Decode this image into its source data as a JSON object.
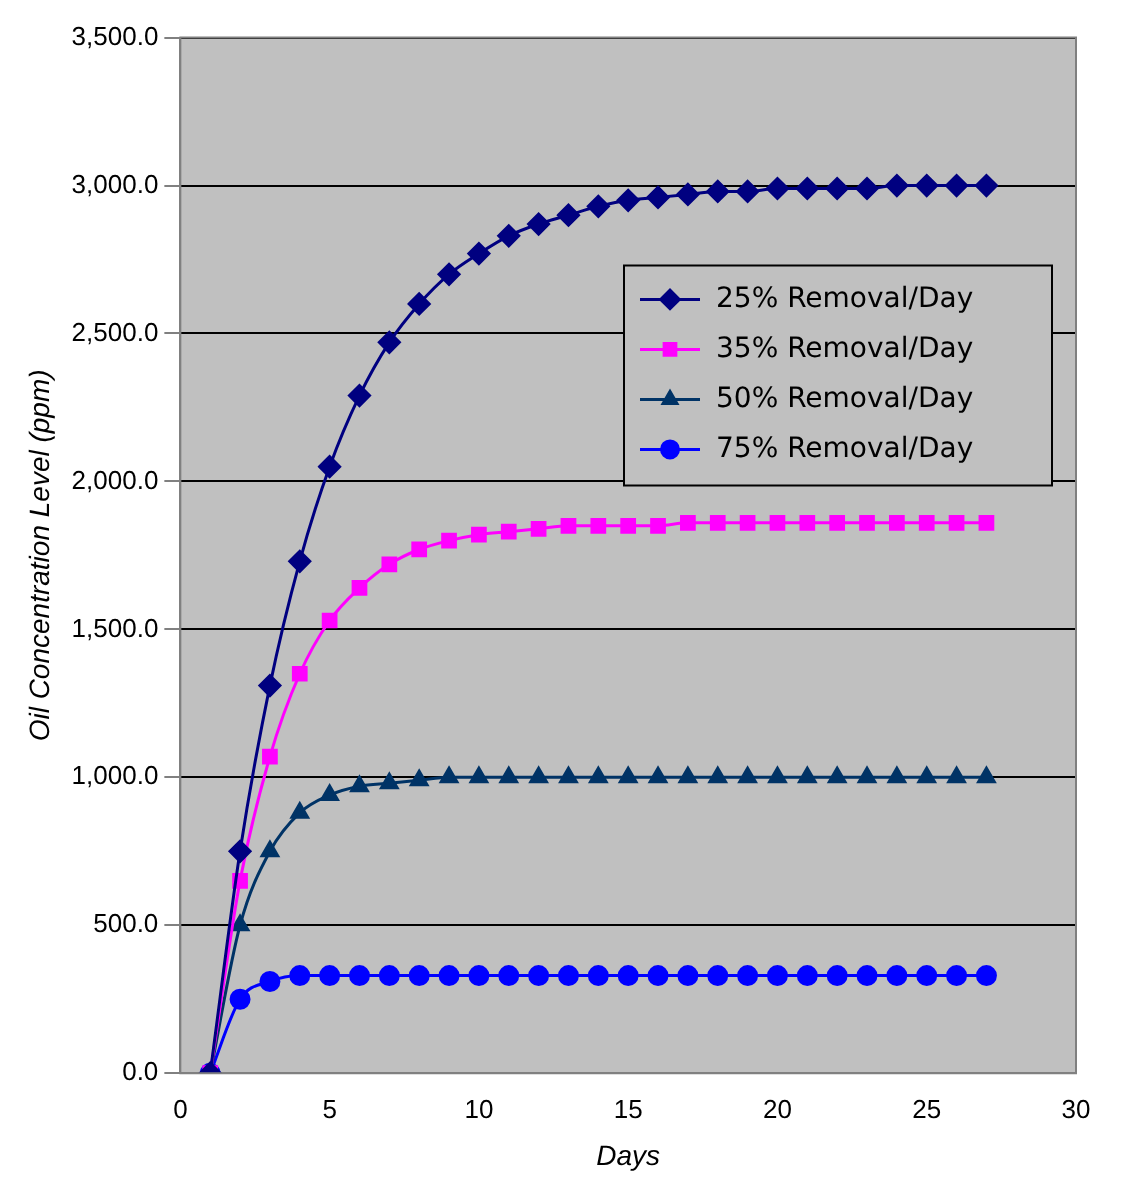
{
  "chart_data": {
    "type": "line",
    "xlabel": "Days",
    "ylabel": "Oil Concentration Level (ppm)",
    "x": [
      1,
      2,
      3,
      4,
      5,
      6,
      7,
      8,
      9,
      10,
      11,
      12,
      13,
      14,
      15,
      16,
      17,
      18,
      19,
      20,
      21,
      22,
      23,
      24,
      25,
      26,
      27
    ],
    "series": [
      {
        "name": "25% Removal/Day",
        "color": "#000080",
        "marker": "diamond",
        "values": [
          0,
          750,
          1310,
          1730,
          2050,
          2290,
          2470,
          2600,
          2700,
          2770,
          2830,
          2870,
          2900,
          2930,
          2950,
          2960,
          2970,
          2980,
          2980,
          2990,
          2990,
          2990,
          2990,
          3000,
          3000,
          3000,
          3000
        ]
      },
      {
        "name": "35% Removal/Day",
        "color": "#ff00ff",
        "marker": "square",
        "values": [
          0,
          650,
          1070,
          1350,
          1530,
          1640,
          1720,
          1770,
          1800,
          1820,
          1830,
          1840,
          1850,
          1850,
          1850,
          1850,
          1860,
          1860,
          1860,
          1860,
          1860,
          1860,
          1860,
          1860,
          1860,
          1860,
          1860
        ]
      },
      {
        "name": "50% Removal/Day",
        "color": "#003366",
        "marker": "triangle",
        "values": [
          0,
          500,
          750,
          880,
          940,
          970,
          980,
          990,
          1000,
          1000,
          1000,
          1000,
          1000,
          1000,
          1000,
          1000,
          1000,
          1000,
          1000,
          1000,
          1000,
          1000,
          1000,
          1000,
          1000,
          1000,
          1000
        ]
      },
      {
        "name": "75% Removal/Day",
        "color": "#0000ff",
        "marker": "circle",
        "values": [
          0,
          250,
          310,
          330,
          330,
          330,
          330,
          330,
          330,
          330,
          330,
          330,
          330,
          330,
          330,
          330,
          330,
          330,
          330,
          330,
          330,
          330,
          330,
          330,
          330,
          330,
          330
        ]
      }
    ],
    "xlim": [
      0,
      30
    ],
    "xticks": [
      0,
      5,
      10,
      15,
      20,
      25,
      30
    ],
    "ylim": [
      0,
      3500
    ],
    "yticks": [
      {
        "value": 0,
        "label": "0.0"
      },
      {
        "value": 500,
        "label": "500.0"
      },
      {
        "value": 1000,
        "label": "1,000.0"
      },
      {
        "value": 1500,
        "label": "1,500.0"
      },
      {
        "value": 2000,
        "label": "2,000.0"
      },
      {
        "value": 2500,
        "label": "2,500.0"
      },
      {
        "value": 3000,
        "label": "3,000.0"
      },
      {
        "value": 3500,
        "label": "3,500.0"
      }
    ],
    "grid": "y",
    "legend": "right",
    "line_style": "solid"
  }
}
